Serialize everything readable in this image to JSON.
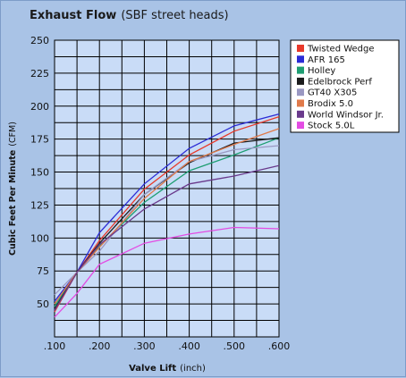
{
  "chart_data": {
    "type": "line",
    "title": "Exhaust Flow",
    "subtitle": "(SBF street heads)",
    "xlabel": "Valve Lift",
    "xlabel_unit": "(inch)",
    "ylabel": "Cubic Feet Per Minute",
    "ylabel_unit": "(CFM)",
    "x": [
      0.1,
      0.15,
      0.2,
      0.3,
      0.4,
      0.5,
      0.6
    ],
    "x_tick_values": [
      0.1,
      0.2,
      0.3,
      0.4,
      0.5,
      0.6
    ],
    "x_tick_labels": [
      ".100",
      ".200",
      ".300",
      ".400",
      ".500",
      ".600"
    ],
    "xlim": [
      0.1,
      0.6
    ],
    "y_ticks": [
      50,
      75,
      100,
      125,
      150,
      175,
      200,
      225,
      250
    ],
    "ylim": [
      25,
      250
    ],
    "grid": true,
    "legend_position": "right",
    "series": [
      {
        "name": "Twisted Wedge",
        "color": "#e8392a",
        "values": [
          44,
          74,
          98,
          137,
          163,
          181,
          192
        ]
      },
      {
        "name": "AFR 165",
        "color": "#2b2bd6",
        "values": [
          52,
          74,
          104,
          141,
          168,
          185,
          194
        ]
      },
      {
        "name": "Holley",
        "color": "#1e9e72",
        "values": [
          48,
          74,
          94,
          127,
          151,
          163,
          176
        ]
      },
      {
        "name": "Edelbrock Perf",
        "color": "#1c1c1c",
        "values": [
          46,
          74,
          96,
          133,
          157,
          172,
          176
        ]
      },
      {
        "name": "GT40 X305",
        "color": "#9a98c2",
        "values": [
          57,
          74,
          90,
          133,
          158,
          167,
          170
        ]
      },
      {
        "name": "Brodix 5.0",
        "color": "#e07a4a",
        "values": [
          50,
          74,
          93,
          130,
          158,
          171,
          183
        ]
      },
      {
        "name": "World Windsor Jr.",
        "color": "#6a3a8c",
        "values": [
          45,
          74,
          95,
          122,
          141,
          147,
          155
        ]
      },
      {
        "name": "Stock 5.0L",
        "color": "#e34ce3",
        "values": [
          40,
          58,
          80,
          96,
          103,
          108,
          107
        ]
      }
    ]
  }
}
